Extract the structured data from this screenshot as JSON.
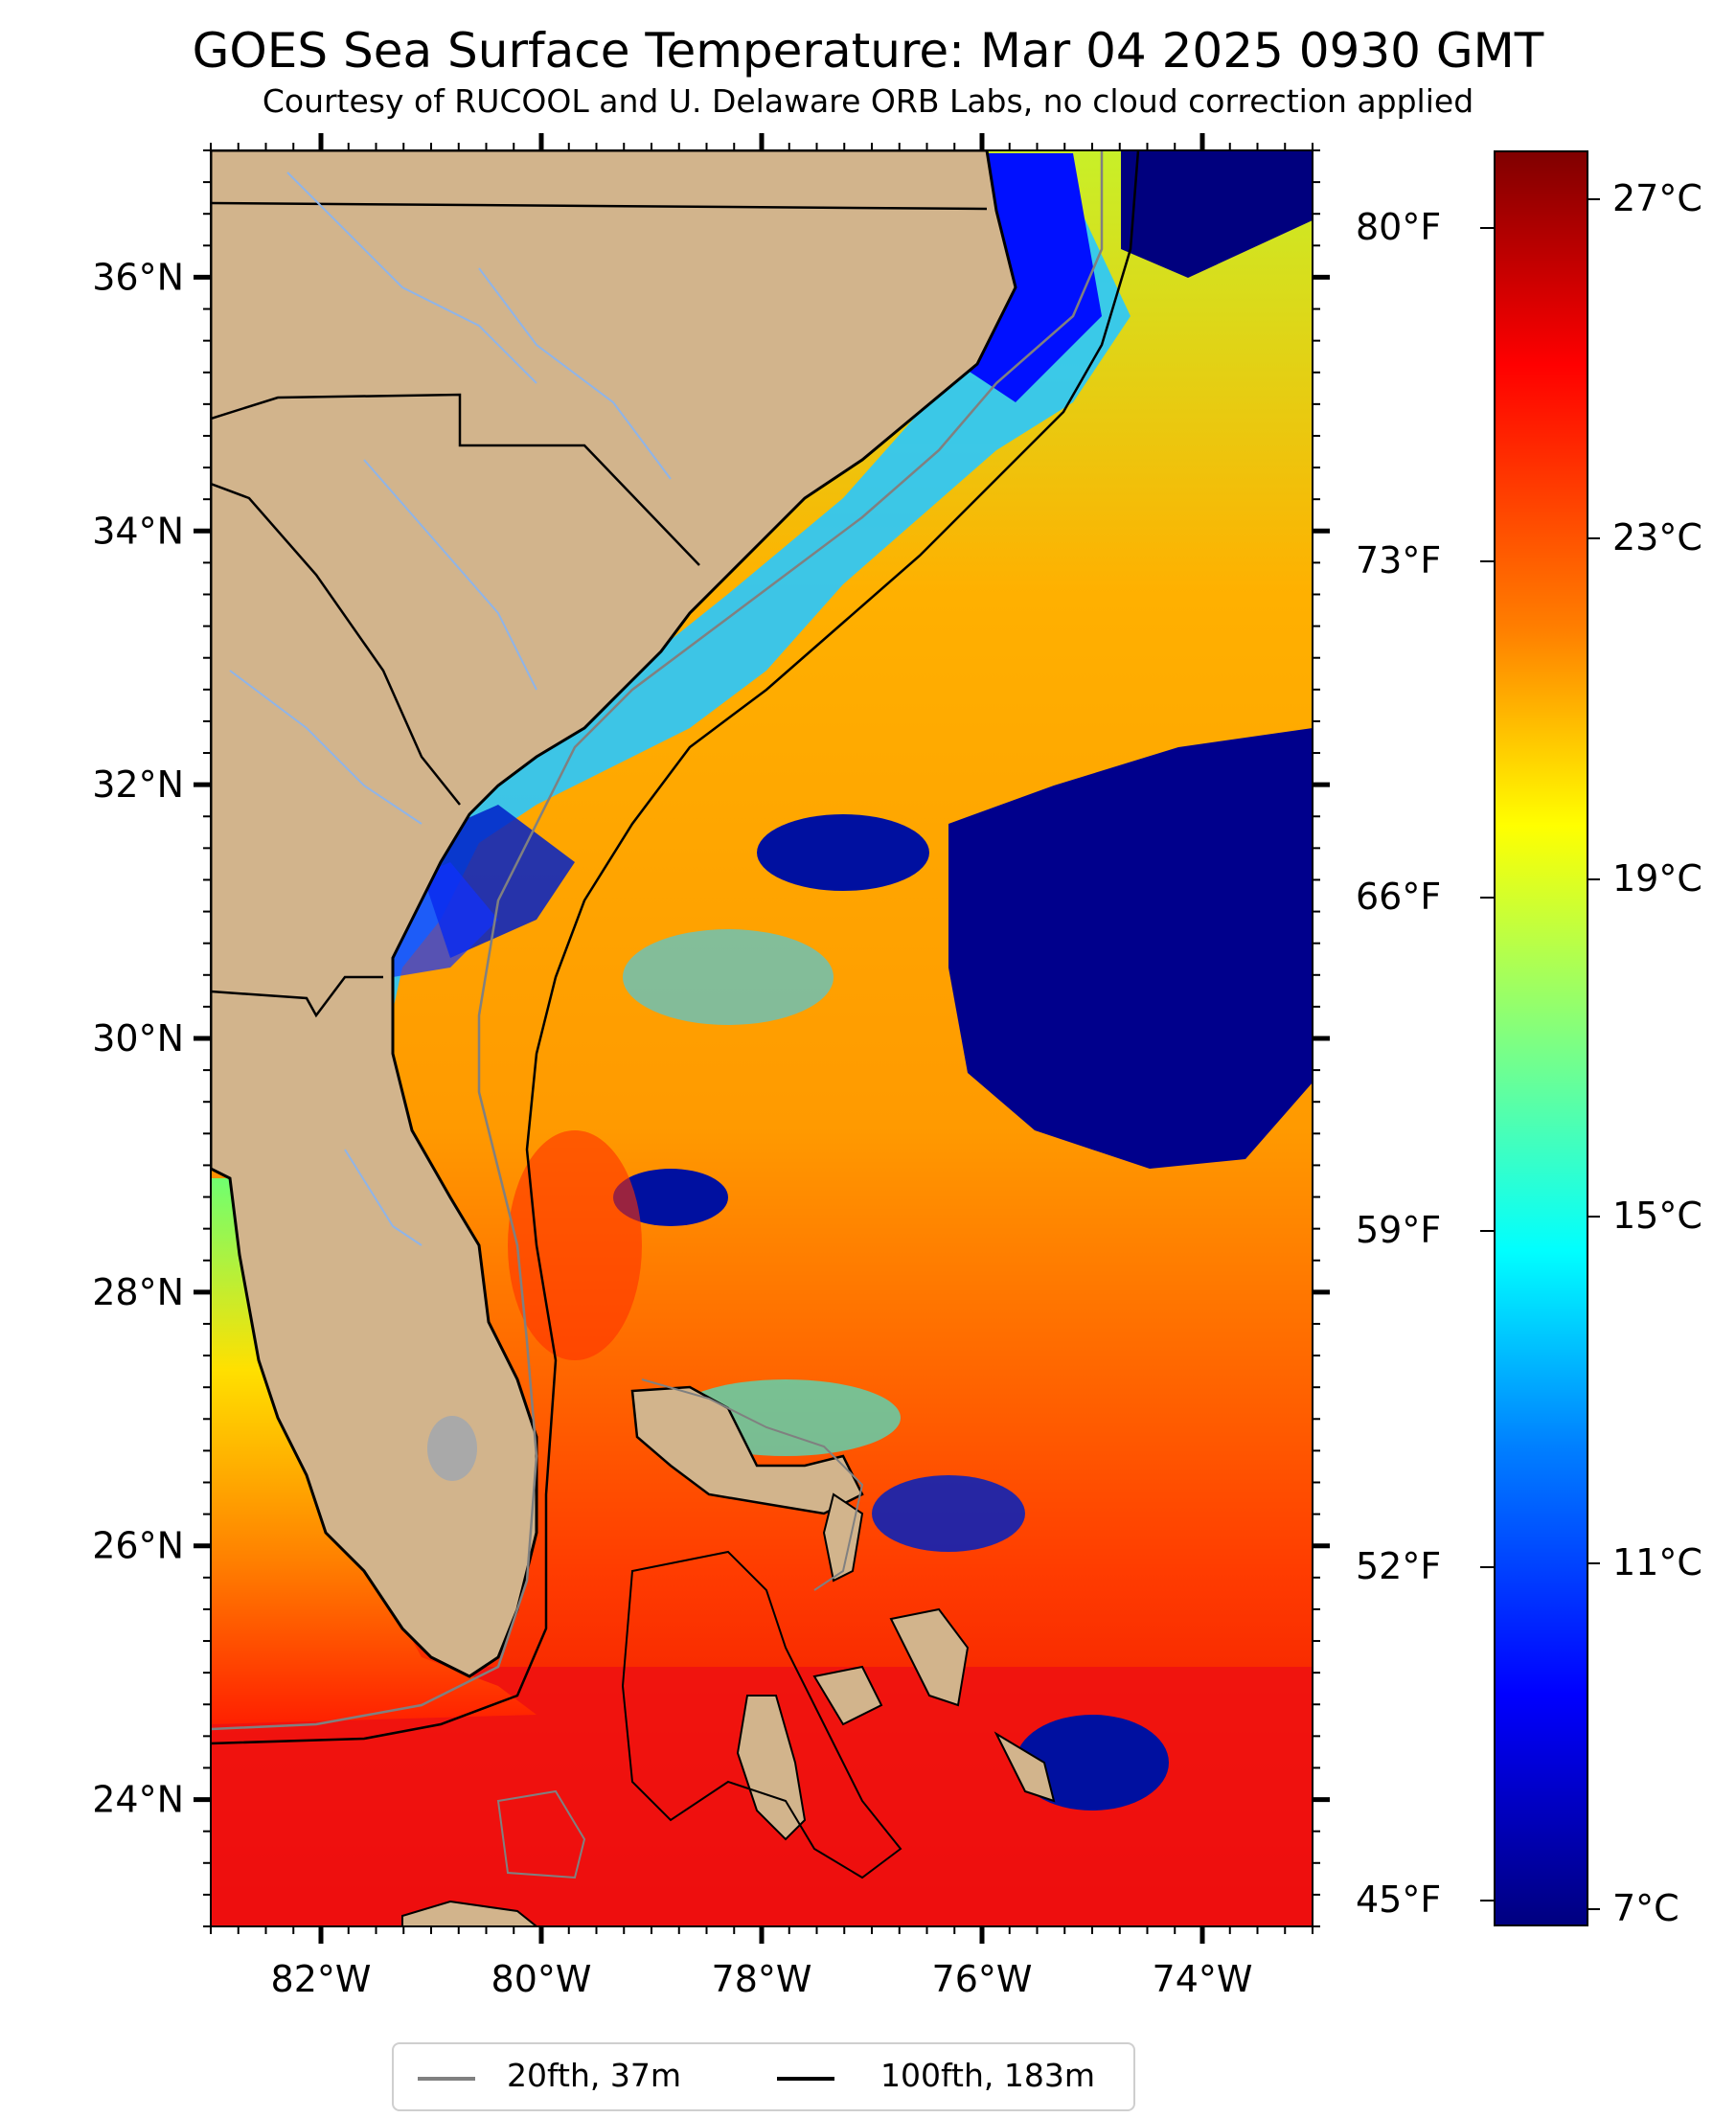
{
  "header": {
    "title": "GOES Sea Surface Temperature: Mar 04 2025 0930 GMT",
    "subtitle": "Courtesy of RUCOOL and U. Delaware ORB Labs, no cloud correction applied"
  },
  "map": {
    "lat_range": [
      23.0,
      37.0
    ],
    "lon_range": [
      -83.0,
      -73.0
    ],
    "lat_ticks": [
      {
        "value": 36,
        "label": "36°N"
      },
      {
        "value": 34,
        "label": "34°N"
      },
      {
        "value": 32,
        "label": "32°N"
      },
      {
        "value": 30,
        "label": "30°N"
      },
      {
        "value": 28,
        "label": "28°N"
      },
      {
        "value": 26,
        "label": "26°N"
      },
      {
        "value": 24,
        "label": "24°N"
      }
    ],
    "lon_ticks": [
      {
        "value": -82,
        "label": "82°W"
      },
      {
        "value": -80,
        "label": "80°W"
      },
      {
        "value": -78,
        "label": "78°W"
      },
      {
        "value": -76,
        "label": "76°W"
      },
      {
        "value": -74,
        "label": "74°W"
      }
    ],
    "colors": {
      "land": "#d2b48c",
      "bahamas_land": "#d2b48c",
      "lake": "#a9a9a9",
      "river": "#8fb4e8",
      "coast": "#000000"
    }
  },
  "colorbar": {
    "colormap": "jet",
    "celsius_ticks": [
      "27°C",
      "23°C",
      "19°C",
      "15°C",
      "11°C",
      "7°C"
    ],
    "fahrenheit_ticks": [
      "80°F",
      "73°F",
      "66°F",
      "59°F",
      "52°F",
      "45°F"
    ]
  },
  "legend": {
    "items": [
      {
        "label": "20fth, 37m",
        "color": "#808080"
      },
      {
        "label": "100fth, 183m",
        "color": "#000000"
      }
    ]
  }
}
